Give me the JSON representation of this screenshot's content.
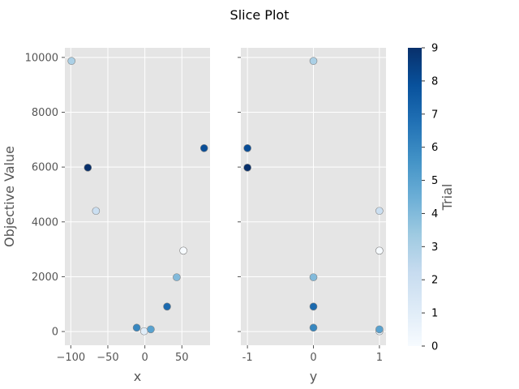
{
  "title": "Slice Plot",
  "colors": {
    "panel_bg": "#e5e5e5",
    "grid": "#ffffff",
    "marker_edge": "#808080"
  },
  "colorbar": {
    "label": "Trial",
    "min": 0,
    "max": 9,
    "ticks": [
      "0",
      "1",
      "2",
      "3",
      "4",
      "5",
      "6",
      "7",
      "8",
      "9"
    ],
    "colormap": [
      "#f7fbff",
      "#deebf7",
      "#c6dbef",
      "#9ecae1",
      "#6baed6",
      "#4292c6",
      "#2171b5",
      "#08519c",
      "#08306b"
    ]
  },
  "chart_data": [
    {
      "type": "scatter",
      "xlabel": "x",
      "ylabel": "Objective Value",
      "xlim": [
        -108,
        88
      ],
      "ylim": [
        -500,
        10350
      ],
      "xticks": [
        -100,
        -50,
        0,
        50
      ],
      "xtick_labels": [
        "−100",
        "−50",
        "0",
        "50"
      ],
      "yticks": [
        0,
        2000,
        4000,
        6000,
        8000,
        10000
      ],
      "ytick_labels": [
        "0",
        "2000",
        "4000",
        "6000",
        "8000",
        "10000"
      ],
      "points": [
        {
          "trial": 0,
          "x": 52,
          "y": 2950
        },
        {
          "trial": 1,
          "x": -1,
          "y": 10
        },
        {
          "trial": 2,
          "x": -66,
          "y": 4400
        },
        {
          "trial": 3,
          "x": -99,
          "y": 9870
        },
        {
          "trial": 4,
          "x": 43,
          "y": 1980
        },
        {
          "trial": 5,
          "x": 8,
          "y": 80
        },
        {
          "trial": 6,
          "x": -11,
          "y": 140
        },
        {
          "trial": 7,
          "x": 30,
          "y": 910
        },
        {
          "trial": 8,
          "x": 80,
          "y": 6690
        },
        {
          "trial": 9,
          "x": -77,
          "y": 5980
        }
      ]
    },
    {
      "type": "scatter",
      "xlabel": "y",
      "ylabel": "",
      "xlim": [
        -1.1,
        1.1
      ],
      "ylim": [
        -500,
        10350
      ],
      "xticks": [
        -1,
        0,
        1
      ],
      "xtick_labels": [
        "-1",
        "0",
        "1"
      ],
      "yticks": [
        0,
        2000,
        4000,
        6000,
        8000,
        10000
      ],
      "ytick_labels": [
        "",
        "",
        "",
        "",
        "",
        ""
      ],
      "points": [
        {
          "trial": 0,
          "x": 1,
          "y": 2950
        },
        {
          "trial": 1,
          "x": 1,
          "y": 10
        },
        {
          "trial": 2,
          "x": 1,
          "y": 4400
        },
        {
          "trial": 3,
          "x": 0,
          "y": 9870
        },
        {
          "trial": 4,
          "x": 0,
          "y": 1980
        },
        {
          "trial": 5,
          "x": 1,
          "y": 80
        },
        {
          "trial": 6,
          "x": 0,
          "y": 140
        },
        {
          "trial": 7,
          "x": 0,
          "y": 910
        },
        {
          "trial": 8,
          "x": -1,
          "y": 6690
        },
        {
          "trial": 9,
          "x": -1,
          "y": 5980
        }
      ]
    }
  ]
}
